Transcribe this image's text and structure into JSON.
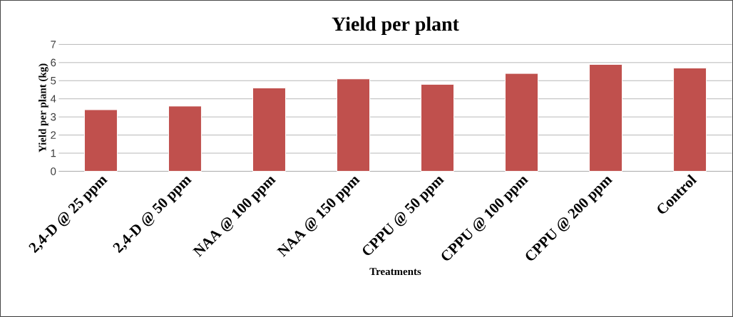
{
  "chart_data": {
    "type": "bar",
    "title": "Yield per plant",
    "xlabel": "Treatments",
    "ylabel": "Yield per plant (kg)",
    "categories": [
      "2,4-D @ 25 ppm",
      "2,4-D @ 50 ppm",
      "NAA @ 100 ppm",
      "NAA @ 150 ppm",
      "CPPU @ 50 ppm",
      "CPPU @ 100 ppm",
      "CPPU @ 200 ppm",
      "Control"
    ],
    "values": [
      3.4,
      3.6,
      4.6,
      5.1,
      4.8,
      5.4,
      5.9,
      5.7
    ],
    "color": "#c0504d",
    "ylim": [
      0,
      7
    ],
    "yticks": [
      0,
      1,
      2,
      3,
      4,
      5,
      6,
      7
    ],
    "grid": "y"
  }
}
